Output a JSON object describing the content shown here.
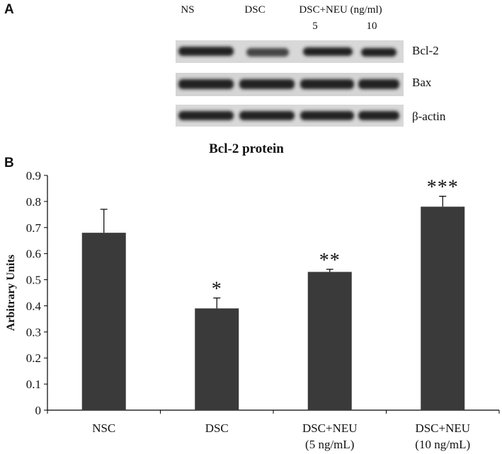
{
  "blot": {
    "panel_label": "A",
    "lanes": [
      "NS",
      "DSC",
      "DSC+NEU (ng/ml)"
    ],
    "doses": [
      "5",
      "10"
    ],
    "bands": [
      "Bcl-2",
      "Bax",
      "β-actin"
    ]
  },
  "chart_data": {
    "type": "bar",
    "panel_label": "B",
    "title": "Bcl-2 protein",
    "ylabel": "Arbitrary Units",
    "categories": [
      "NSC",
      "DSC",
      "DSC+NEU\n(5 ng/mL)",
      "DSC+NEU\n(10 ng/mL)"
    ],
    "values": [
      0.68,
      0.39,
      0.53,
      0.78
    ],
    "errors": [
      0.09,
      0.04,
      0.01,
      0.04
    ],
    "significance": [
      null,
      "*",
      "**",
      "***"
    ],
    "color": "#3a3a3a",
    "ylim": [
      0,
      0.9
    ],
    "yticks": [
      0,
      0.1,
      0.2,
      0.3,
      0.4,
      0.5,
      0.6,
      0.7,
      0.8,
      0.9
    ]
  }
}
